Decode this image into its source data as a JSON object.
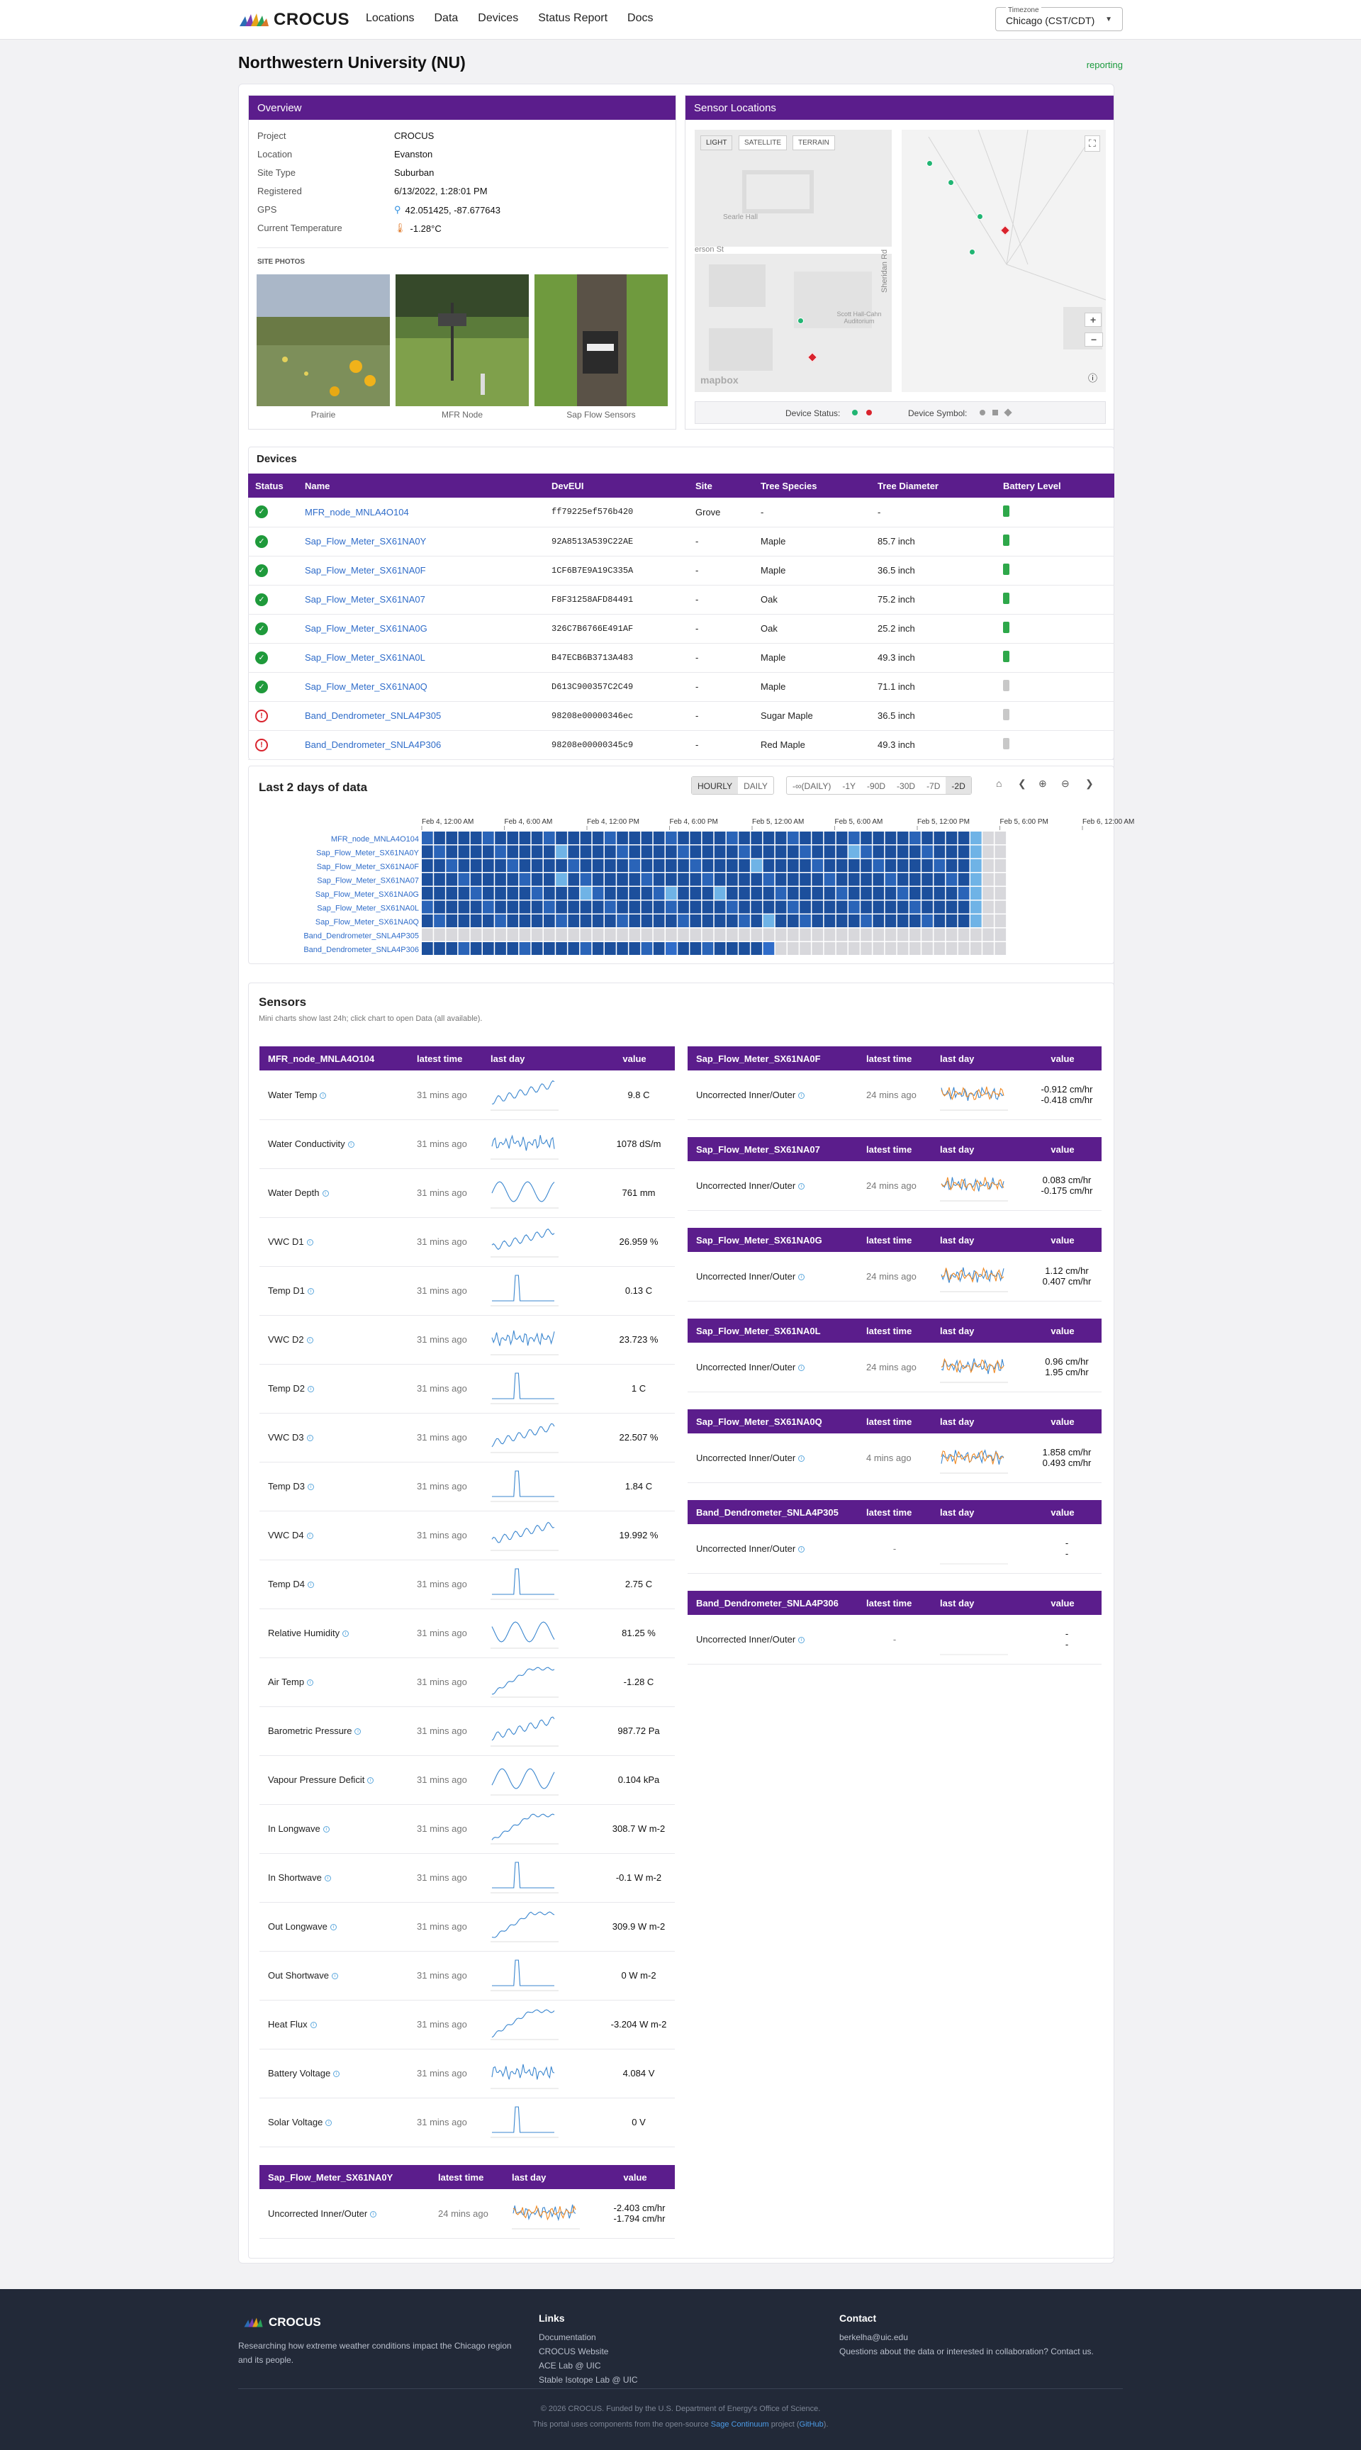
{
  "nav": {
    "logo": "CROCUS",
    "links": [
      "Locations",
      "Data",
      "Devices",
      "Status Report",
      "Docs"
    ],
    "timezone_label": "Timezone",
    "timezone": "Chicago (CST/CDT)"
  },
  "page": {
    "title": "Northwestern University (NU)",
    "status": "reporting"
  },
  "overview": {
    "title": "Overview",
    "rows": [
      {
        "k": "Project",
        "v": "CROCUS"
      },
      {
        "k": "Location",
        "v": "Evanston"
      },
      {
        "k": "Site Type",
        "v": "Suburban"
      },
      {
        "k": "Registered",
        "v": "6/13/2022, 1:28:01 PM"
      },
      {
        "k": "GPS",
        "v": "42.051425, -87.677643"
      },
      {
        "k": "Current Temperature",
        "v": "-1.28°C"
      }
    ],
    "photos_title": "SITE PHOTOS",
    "photos": [
      "Prairie",
      "MFR Node",
      "Sap Flow Sensors"
    ]
  },
  "map": {
    "title": "Sensor Locations",
    "styles": [
      "LIGHT",
      "SATELLITE",
      "TERRAIN"
    ],
    "labels": [
      "Searle Hall",
      "erson St",
      "Sheridan Rd",
      "Scott Hall-Cahn Auditorium"
    ],
    "attribution": "mapbox",
    "legend_status": "Device Status:",
    "legend_symbol": "Device Symbol:"
  },
  "devices": {
    "title": "Devices",
    "headers": [
      "Status",
      "Name",
      "DevEUI",
      "Site",
      "Tree Species",
      "Tree Diameter",
      "Battery Level"
    ],
    "rows": [
      {
        "ok": true,
        "name": "MFR_node_MNLA4O104",
        "eui": "ff79225ef576b420",
        "site": "Grove",
        "species": "-",
        "diam": "-",
        "bat": "green"
      },
      {
        "ok": true,
        "name": "Sap_Flow_Meter_SX61NA0Y",
        "eui": "92A8513A539C22AE",
        "site": "-",
        "species": "Maple",
        "diam": "85.7 inch",
        "bat": "green"
      },
      {
        "ok": true,
        "name": "Sap_Flow_Meter_SX61NA0F",
        "eui": "1CF6B7E9A19C335A",
        "site": "-",
        "species": "Maple",
        "diam": "36.5 inch",
        "bat": "green"
      },
      {
        "ok": true,
        "name": "Sap_Flow_Meter_SX61NA07",
        "eui": "F8F31258AFD84491",
        "site": "-",
        "species": "Oak",
        "diam": "75.2 inch",
        "bat": "green"
      },
      {
        "ok": true,
        "name": "Sap_Flow_Meter_SX61NA0G",
        "eui": "326C7B6766E491AF",
        "site": "-",
        "species": "Oak",
        "diam": "25.2 inch",
        "bat": "green"
      },
      {
        "ok": true,
        "name": "Sap_Flow_Meter_SX61NA0L",
        "eui": "B47ECB6B3713A483",
        "site": "-",
        "species": "Maple",
        "diam": "49.3 inch",
        "bat": "green"
      },
      {
        "ok": true,
        "name": "Sap_Flow_Meter_SX61NA0Q",
        "eui": "D613C900357C2C49",
        "site": "-",
        "species": "Maple",
        "diam": "71.1 inch",
        "bat": "gray"
      },
      {
        "ok": false,
        "name": "Band_Dendrometer_SNLA4P305",
        "eui": "98208e00000346ec",
        "site": "-",
        "species": "Sugar Maple",
        "diam": "36.5 inch",
        "bat": "gray"
      },
      {
        "ok": false,
        "name": "Band_Dendrometer_SNLA4P306",
        "eui": "98208e00000345c9",
        "site": "-",
        "species": "Red Maple",
        "diam": "49.3 inch",
        "bat": "gray"
      }
    ]
  },
  "heatmap": {
    "title": "Last 2 days of data",
    "modes": [
      "HOURLY",
      "DAILY"
    ],
    "ranges": [
      "-∞(DAILY)",
      "-1Y",
      "-90D",
      "-30D",
      "-7D",
      "-2D"
    ],
    "times": [
      "Feb 4, 12:00 AM",
      "Feb 4, 6:00 AM",
      "Feb 4, 12:00 PM",
      "Feb 4, 6:00 PM",
      "Feb 5, 12:00 AM",
      "Feb 5, 6:00 AM",
      "Feb 5, 12:00 PM",
      "Feb 5, 6:00 PM",
      "Feb 6, 12:00 AM"
    ],
    "rows": [
      "MFR_node_MNLA4O104",
      "Sap_Flow_Meter_SX61NA0Y",
      "Sap_Flow_Meter_SX61NA0F",
      "Sap_Flow_Meter_SX61NA07",
      "Sap_Flow_Meter_SX61NA0G",
      "Sap_Flow_Meter_SX61NA0L",
      "Sap_Flow_Meter_SX61NA0Q",
      "Band_Dendrometer_SNLA4P305",
      "Band_Dendrometer_SNLA4P306"
    ]
  },
  "sensors": {
    "title": "Sensors",
    "subtitle": "Mini charts show last 24h; click chart to open Data (all available).",
    "cols": [
      "latest time",
      "last day",
      "value"
    ],
    "mfr": {
      "name": "MFR_node_MNLA4O104",
      "rows": [
        [
          "Water Temp",
          "31 mins ago",
          "9.8 C"
        ],
        [
          "Water Conductivity",
          "31 mins ago",
          "1078 dS/m"
        ],
        [
          "Water Depth",
          "31 mins ago",
          "761 mm"
        ],
        [
          "VWC D1",
          "31 mins ago",
          "26.959 %"
        ],
        [
          "Temp D1",
          "31 mins ago",
          "0.13 C"
        ],
        [
          "VWC D2",
          "31 mins ago",
          "23.723 %"
        ],
        [
          "Temp D2",
          "31 mins ago",
          "1 C"
        ],
        [
          "VWC D3",
          "31 mins ago",
          "22.507 %"
        ],
        [
          "Temp D3",
          "31 mins ago",
          "1.84 C"
        ],
        [
          "VWC D4",
          "31 mins ago",
          "19.992 %"
        ],
        [
          "Temp D4",
          "31 mins ago",
          "2.75 C"
        ],
        [
          "Relative Humidity",
          "31 mins ago",
          "81.25 %"
        ],
        [
          "Air Temp",
          "31 mins ago",
          "-1.28 C"
        ],
        [
          "Barometric Pressure",
          "31 mins ago",
          "987.72 Pa"
        ],
        [
          "Vapour Pressure Deficit",
          "31 mins ago",
          "0.104 kPa"
        ],
        [
          "In Longwave",
          "31 mins ago",
          "308.7 W m-2"
        ],
        [
          "In Shortwave",
          "31 mins ago",
          "-0.1 W m-2"
        ],
        [
          "Out Longwave",
          "31 mins ago",
          "309.9 W m-2"
        ],
        [
          "Out Shortwave",
          "31 mins ago",
          "0 W m-2"
        ],
        [
          "Heat Flux",
          "31 mins ago",
          "-3.204 W m-2"
        ],
        [
          "Battery Voltage",
          "31 mins ago",
          "4.084 V"
        ],
        [
          "Solar Voltage",
          "31 mins ago",
          "0 V"
        ]
      ]
    },
    "sap": [
      {
        "name": "Sap_Flow_Meter_SX61NA0Y",
        "row": "Uncorrected Inner/Outer",
        "time": "24 mins ago",
        "v1": "-2.403 cm/hr",
        "v2": "-1.794 cm/hr"
      },
      {
        "name": "Sap_Flow_Meter_SX61NA0F",
        "row": "Uncorrected Inner/Outer",
        "time": "24 mins ago",
        "v1": "-0.912 cm/hr",
        "v2": "-0.418 cm/hr"
      },
      {
        "name": "Sap_Flow_Meter_SX61NA07",
        "row": "Uncorrected Inner/Outer",
        "time": "24 mins ago",
        "v1": "0.083 cm/hr",
        "v2": "-0.175 cm/hr"
      },
      {
        "name": "Sap_Flow_Meter_SX61NA0G",
        "row": "Uncorrected Inner/Outer",
        "time": "24 mins ago",
        "v1": "1.12 cm/hr",
        "v2": "0.407 cm/hr"
      },
      {
        "name": "Sap_Flow_Meter_SX61NA0L",
        "row": "Uncorrected Inner/Outer",
        "time": "24 mins ago",
        "v1": "0.96 cm/hr",
        "v2": "1.95 cm/hr"
      },
      {
        "name": "Sap_Flow_Meter_SX61NA0Q",
        "row": "Uncorrected Inner/Outer",
        "time": "4 mins ago",
        "v1": "1.858 cm/hr",
        "v2": "0.493 cm/hr"
      },
      {
        "name": "Band_Dendrometer_SNLA4P305",
        "row": "Uncorrected Inner/Outer",
        "time": "-",
        "v1": "-",
        "v2": "-"
      },
      {
        "name": "Band_Dendrometer_SNLA4P306",
        "row": "Uncorrected Inner/Outer",
        "time": "-",
        "v1": "-",
        "v2": "-"
      }
    ]
  },
  "footer": {
    "logo": "CROCUS",
    "tagline": "Researching how extreme weather conditions impact the Chicago region and its people.",
    "links_title": "Links",
    "links": [
      "Documentation",
      "CROCUS Website",
      "ACE Lab @ UIC",
      "Stable Isotope Lab @ UIC"
    ],
    "contact_title": "Contact",
    "email": "berkelha@uic.edu",
    "contact_note": "Questions about the data or interested in collaboration? Contact us.",
    "copyright": "© 2026 CROCUS. Funded by the U.S. Department of Energy's Office of Science.",
    "credit_pre": "This portal uses components from the open-source",
    "credit_link": "Sage Continuum",
    "credit_mid": "project (",
    "credit_gh": "GitHub",
    "credit_end": ")."
  },
  "colors": {
    "accent": "#5b1d8c",
    "ok": "#1f9a3b",
    "error": "#d9232d",
    "link": "#2f6cc9",
    "heat_dark": "#1c4f9c",
    "heat_light": "#5aa7dd"
  }
}
